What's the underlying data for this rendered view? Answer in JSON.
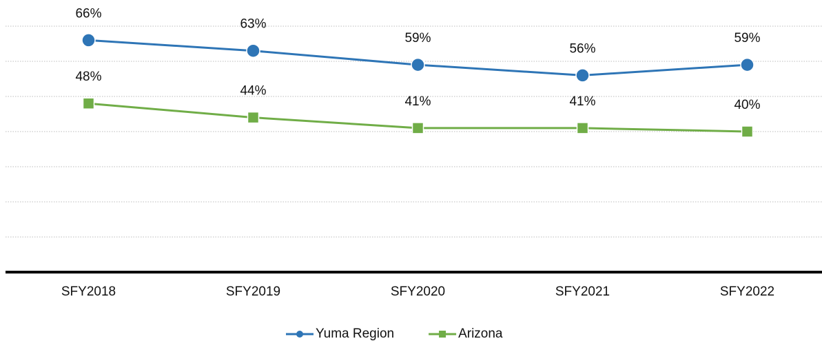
{
  "chart_data": {
    "type": "line",
    "categories": [
      "SFY2018",
      "SFY2019",
      "SFY2020",
      "SFY2021",
      "SFY2022"
    ],
    "series": [
      {
        "name": "Yuma Region",
        "color": "#2e75b6",
        "marker": "circle",
        "values": [
          66,
          63,
          59,
          56,
          59
        ],
        "value_labels": [
          "66%",
          "63%",
          "59%",
          "56%",
          "59%"
        ]
      },
      {
        "name": "Arizona",
        "color": "#70ad47",
        "marker": "square",
        "values": [
          48,
          44,
          41,
          41,
          40
        ],
        "value_labels": [
          "48%",
          "44%",
          "41%",
          "41%",
          "40%"
        ]
      }
    ],
    "ylim": [
      0,
      70
    ],
    "yticks": [
      0,
      10,
      20,
      30,
      40,
      50,
      60,
      70
    ],
    "grid": true,
    "legend": "bottom"
  }
}
